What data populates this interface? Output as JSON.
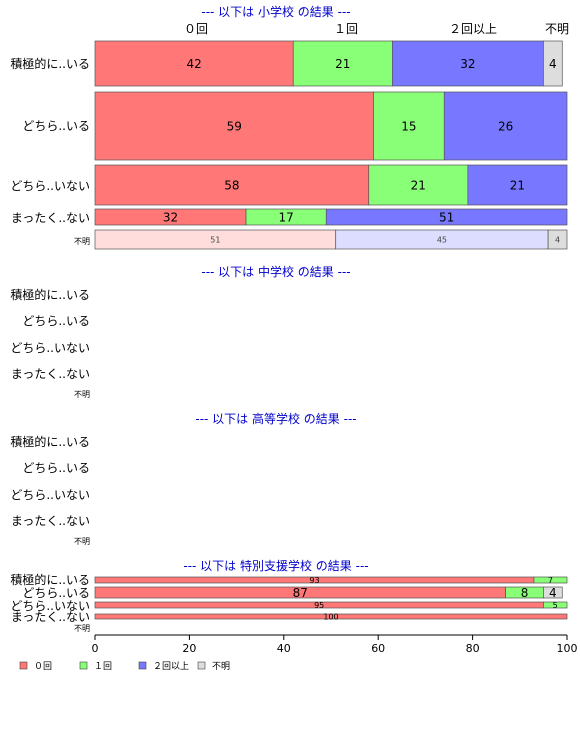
{
  "colors": {
    "zero": "#ff7777",
    "once": "#88ff77",
    "twice_plus": "#7777ff",
    "unknown": "#dddddd",
    "unknown_zero": "#ffdddd",
    "unknown_twice_plus": "#ddddff",
    "section_title": "#0000cc",
    "text": "#000000"
  },
  "chart_data": {
    "type": "bar",
    "orientation": "horizontal-stacked-percent",
    "header": {
      "zero": "０回",
      "once": "１回",
      "twice_plus": "２回以上",
      "unknown": "不明"
    },
    "categories": [
      "積極的に..いる",
      "どちら..いる",
      "どちら..いない",
      "まったく..ない",
      "不明"
    ],
    "series_names": [
      "０回",
      "１回",
      "２回以上",
      "不明"
    ],
    "panels": [
      {
        "title": "--- 以下は 小学校 の結果 ---",
        "rows": [
          {
            "label": "積極的に..いる",
            "values": [
              42,
              21,
              32,
              4
            ]
          },
          {
            "label": "どちら..いる",
            "values": [
              59,
              15,
              26,
              0
            ]
          },
          {
            "label": "どちら..いない",
            "values": [
              58,
              21,
              21,
              0
            ]
          },
          {
            "label": "まったく..ない",
            "values": [
              32,
              17,
              51,
              0
            ]
          },
          {
            "label": "不明",
            "values": [
              51,
              0,
              45,
              4
            ]
          }
        ]
      },
      {
        "title": "--- 以下は 中学校 の結果 ---",
        "rows": [
          {
            "label": "積極的に..いる",
            "values": []
          },
          {
            "label": "どちら..いる",
            "values": []
          },
          {
            "label": "どちら..いない",
            "values": []
          },
          {
            "label": "まったく..ない",
            "values": []
          },
          {
            "label": "不明",
            "values": []
          }
        ]
      },
      {
        "title": "--- 以下は 高等学校 の結果 ---",
        "rows": [
          {
            "label": "積極的に..いる",
            "values": []
          },
          {
            "label": "どちら..いる",
            "values": []
          },
          {
            "label": "どちら..いない",
            "values": []
          },
          {
            "label": "まったく..ない",
            "values": []
          },
          {
            "label": "不明",
            "values": []
          }
        ]
      },
      {
        "title": "--- 以下は 特別支援学校 の結果 ---",
        "rows": [
          {
            "label": "積極的に..いる",
            "values": [
              93,
              7,
              0,
              0
            ]
          },
          {
            "label": "どちら..いる",
            "values": [
              87,
              8,
              0,
              4
            ]
          },
          {
            "label": "どちら..いない",
            "values": [
              95,
              5,
              0,
              0
            ]
          },
          {
            "label": "まったく..ない",
            "values": [
              100,
              0,
              0,
              0
            ]
          },
          {
            "label": "不明",
            "values": []
          }
        ]
      }
    ],
    "x_axis": {
      "ticks": [
        "0",
        "20",
        "40",
        "60",
        "80",
        "100"
      ],
      "xlim": [
        0,
        100
      ]
    },
    "legend": {
      "items": [
        "０回",
        "１回",
        "２回以上",
        "不明"
      ],
      "placement": "bottom-left"
    }
  }
}
